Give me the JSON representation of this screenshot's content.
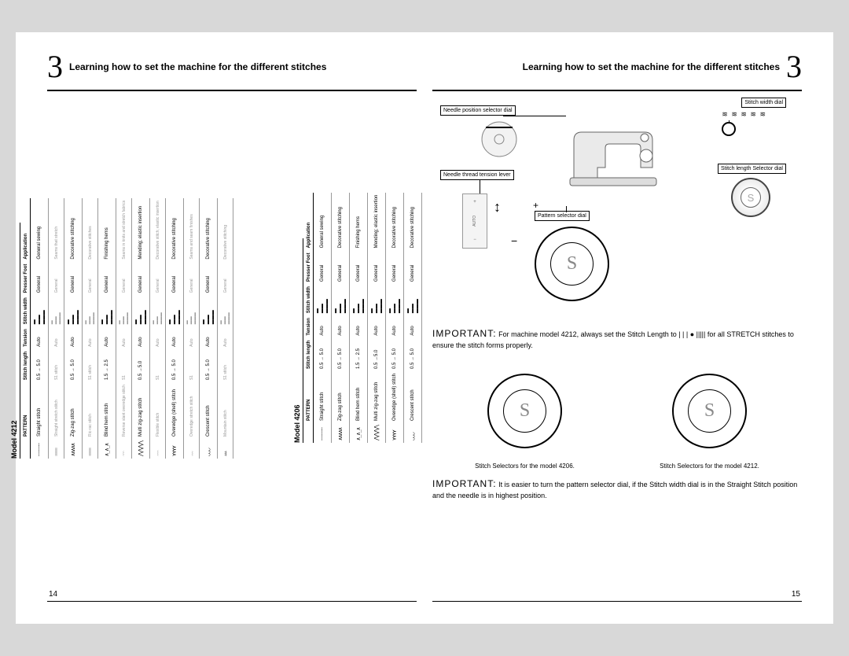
{
  "chapter_title": "Learning how to set the machine for the different stitches",
  "big_number": "3",
  "page_left_num": "14",
  "page_right_num": "15",
  "model_4212_title": "Model 4212",
  "model_4206_title": "Model 4206",
  "table_headers": {
    "pattern": "PATTERN",
    "stitch_length": "Stitch length",
    "tension": "Tension",
    "stitch_width": "Stitch width",
    "presser_foot": "Presser Foot",
    "application": "Application"
  },
  "common_values": {
    "tension": "Auto",
    "foot": "General"
  },
  "t4212": [
    {
      "sym": "┈┈┈┈┈",
      "name": "Straight stitch",
      "len": "0.5 → 5.0",
      "app": "General sewing"
    },
    {
      "sym": "≡≡≡≡≡",
      "name": "Straight stretch stitch",
      "len": "S1 stitch",
      "app": "Seams that stretch",
      "sub": true
    },
    {
      "sym": "∧∧∧∧∧",
      "name": "Zig-zag stitch",
      "len": "0.5 → 5.0",
      "app": "Decorative stitching"
    },
    {
      "sym": "≋≋≋≋≋",
      "name": "Ric-rac stitch",
      "len": "S1 stitch",
      "app": "Decorative stitches",
      "sub": true
    },
    {
      "sym": "∧_∧_∧",
      "name": "Blind hem stitch",
      "len": "1.5 → 2.5",
      "app": "Finishing hems"
    },
    {
      "sym": "⌒⌒⌒",
      "name": "Reverse slant overedge stitch",
      "len": "S1",
      "app": "Seams in knits and stretch fabrics",
      "sub": true
    },
    {
      "sym": "⋀⋀⋀⋀",
      "name": "Multi zig-zag stitch",
      "len": "0.5 →5.0",
      "app": "Mending; elastic insertion"
    },
    {
      "sym": "⌢⌢⌢",
      "name": "Flexible stitch",
      "len": "S1",
      "app": "Decorative stitch; elastic insertion",
      "sub": true
    },
    {
      "sym": "⋎⋎⋎⋎",
      "name": "Overedge (shell) stitch",
      "len": "0.5 → 5.0",
      "app": "Decorative stitching"
    },
    {
      "sym": "⌄⌄⌄",
      "name": "Overedge stretch stitch",
      "len": "S1",
      "app": "Seams and seam finishes",
      "sub": true
    },
    {
      "sym": "◡◡◡",
      "name": "Crescent stitch",
      "len": "0.5 → 5.0",
      "app": "Decorative stitching"
    },
    {
      "sym": "▲▲▲",
      "name": "Mountain stitch",
      "len": "S1 stitch",
      "app": "Decorative stitching",
      "sub": true
    }
  ],
  "t4206": [
    {
      "sym": "┈┈┈┈┈",
      "name": "Straight stitch",
      "len": "0.5 → 5.0",
      "app": "General sewing"
    },
    {
      "sym": "∧∧∧∧∧",
      "name": "Zig-zag stitch",
      "len": "0.5 → 5.0",
      "app": "Decorative stitching"
    },
    {
      "sym": "∧_∧_∧",
      "name": "Blind hem stitch",
      "len": "1.5 → 2.5",
      "app": "Finishing hems"
    },
    {
      "sym": "⋀⋀⋀⋀",
      "name": "Multi zig-zag stitch",
      "len": "0.5 →5.0",
      "app": "Mending; elastic insertion"
    },
    {
      "sym": "⋎⋎⋎⋎",
      "name": "Overedge (shell) stitch",
      "len": "0.5 → 5.0",
      "app": "Decorative stitching"
    },
    {
      "sym": "◡◡◡",
      "name": "Crescent stitch",
      "len": "0.5 → 5.0",
      "app": "Decorative stitching"
    }
  ],
  "labels": {
    "needle_pos": "Needle position selector dial",
    "needle_thread": "Needle thread tension lever",
    "pattern_sel": "Pattern selector dial",
    "stitch_wd": "Stitch width dial",
    "stitch_len": "Stitch length Selector dial"
  },
  "important1": {
    "lead": "IMPORTANT:",
    "text": "For machine model 4212, always set the Stitch Length to | | | ● ||||| for all STRETCH stitches to ensure the stitch forms properly."
  },
  "important2": {
    "lead": "IMPORTANT:",
    "text": "It is easier to turn the pattern selector dial, if the Stitch width dial is in the Straight Stitch position and the needle is in highest position."
  },
  "sel_caption_4206": "Stitch Selectors for the model 4206.",
  "sel_caption_4212": "Stitch Selectors for the model 4212.",
  "dial_letter": "S",
  "tension_auto": "AUTO",
  "colors": {
    "paper": "#ffffff",
    "bg": "#d8d8d8",
    "text": "#000000",
    "faint": "#999999"
  }
}
